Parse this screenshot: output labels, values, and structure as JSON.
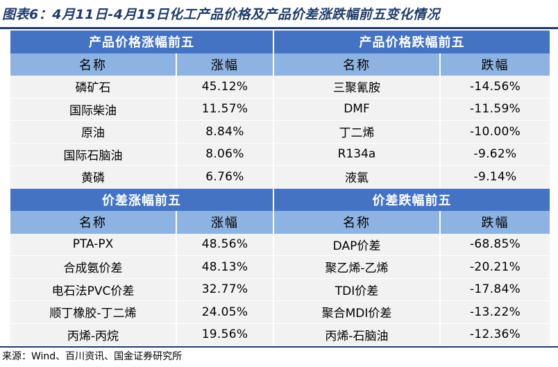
{
  "title": "图表6：4月11日-4月15日化工产品价格及产品价差涨跌幅前五变化情况",
  "sections": {
    "price_up": {
      "title": "产品价格涨幅前五",
      "col_name": "名称",
      "col_value": "涨幅",
      "rows": [
        {
          "name": "磷矿石",
          "value": "45.12%"
        },
        {
          "name": "国际柴油",
          "value": "11.57%"
        },
        {
          "name": "原油",
          "value": "8.84%"
        },
        {
          "name": "国际石脑油",
          "value": "8.06%"
        },
        {
          "name": "黄磷",
          "value": "6.76%"
        }
      ]
    },
    "price_down": {
      "title": "产品价格跌幅前五",
      "col_name": "名称",
      "col_value": "跌幅",
      "rows": [
        {
          "name": "三聚氰胺",
          "value": "-14.56%"
        },
        {
          "name": "DMF",
          "value": "-11.59%"
        },
        {
          "name": "丁二烯",
          "value": "-10.00%"
        },
        {
          "name": "R134a",
          "value": "-9.62%"
        },
        {
          "name": "液氯",
          "value": "-9.14%"
        }
      ]
    },
    "spread_up": {
      "title": "价差涨幅前五",
      "col_name": "名称",
      "col_value": "涨幅",
      "rows": [
        {
          "name": "PTA-PX",
          "value": "48.56%"
        },
        {
          "name": "合成氨价差",
          "value": "48.13%"
        },
        {
          "name": "电石法PVC价差",
          "value": "32.77%"
        },
        {
          "name": "顺丁橡胶-丁二烯",
          "value": "24.05%"
        },
        {
          "name": "丙烯-丙烷",
          "value": "19.56%"
        }
      ]
    },
    "spread_down": {
      "title": "价差跌幅前五",
      "col_name": "名称",
      "col_value": "跌幅",
      "rows": [
        {
          "name": "DAP价差",
          "value": "-68.85%"
        },
        {
          "name": "聚乙烯-乙烯",
          "value": "-20.21%"
        },
        {
          "name": "TDI价差",
          "value": "-17.84%"
        },
        {
          "name": "聚合MDI价差",
          "value": "-13.22%"
        },
        {
          "name": "丙烯-石脑油",
          "value": "-12.36%"
        }
      ]
    }
  },
  "source": "来源：Wind、百川资讯、国金证券研究所",
  "colors": {
    "title": "#1F3A6B",
    "section_header": "#4473C4",
    "column_header": "#8DB3E2",
    "row_bg": "#F2F2F2"
  }
}
